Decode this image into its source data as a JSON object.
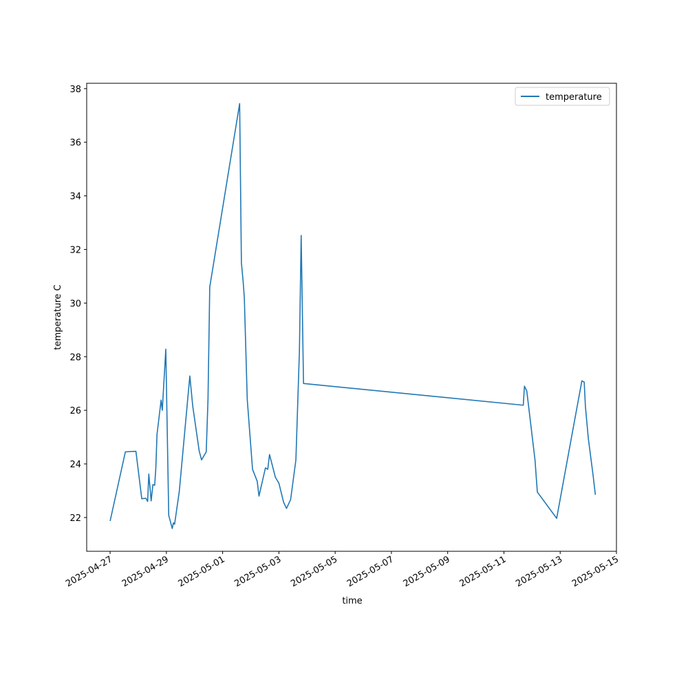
{
  "chart_data": {
    "type": "line",
    "xlabel": "time",
    "ylabel": "temperature C",
    "x": [
      "2025-04-27T00:00",
      "2025-04-27T13:00",
      "2025-04-27T22:00",
      "2025-04-28T03:00",
      "2025-04-28T06:30",
      "2025-04-28T08:00",
      "2025-04-28T09:00",
      "2025-04-28T11:00",
      "2025-04-28T12:30",
      "2025-04-28T14:00",
      "2025-04-28T15:00",
      "2025-04-28T16:00",
      "2025-04-28T19:30",
      "2025-04-28T20:30",
      "2025-04-28T23:30",
      "2025-04-29T02:00",
      "2025-04-29T05:00",
      "2025-04-29T06:00",
      "2025-04-29T07:00",
      "2025-04-29T11:00",
      "2025-04-29T20:00",
      "2025-04-29T22:30",
      "2025-04-30T04:00",
      "2025-04-30T06:00",
      "2025-04-30T10:00",
      "2025-04-30T11:30",
      "2025-04-30T13:00",
      "2025-05-01T14:30",
      "2025-05-01T16:00",
      "2025-05-01T17:30",
      "2025-05-01T18:30",
      "2025-05-01T21:00",
      "2025-05-02T01:30",
      "2025-05-02T05:30",
      "2025-05-02T07:00",
      "2025-05-02T12:30",
      "2025-05-02T14:30",
      "2025-05-02T16:00",
      "2025-05-02T21:00",
      "2025-05-03T00:00",
      "2025-05-03T04:00",
      "2025-05-03T06:30",
      "2025-05-03T10:00",
      "2025-05-03T14:30",
      "2025-05-03T17:30",
      "2025-05-03T19:00",
      "2025-05-03T21:00",
      "2025-05-11T16:30",
      "2025-05-11T17:30",
      "2025-05-11T19:30",
      "2025-05-12T02:30",
      "2025-05-12T04:30",
      "2025-05-12T21:00",
      "2025-05-13T08:00",
      "2025-05-13T18:30",
      "2025-05-13T20:30",
      "2025-05-13T21:30",
      "2025-05-14T00:00",
      "2025-05-14T04:00",
      "2025-05-14T06:00"
    ],
    "series": [
      {
        "name": "temperature",
        "color": "#1f77b4",
        "values": [
          21.87,
          24.45,
          24.47,
          22.7,
          22.72,
          22.6,
          23.62,
          22.62,
          23.23,
          23.2,
          23.85,
          25.1,
          26.38,
          26.0,
          28.28,
          22.08,
          21.59,
          21.8,
          21.75,
          22.97,
          27.28,
          26.15,
          24.48,
          24.15,
          24.45,
          26.4,
          30.6,
          37.44,
          31.5,
          30.8,
          30.2,
          26.4,
          23.8,
          23.35,
          22.8,
          23.85,
          23.8,
          24.35,
          23.5,
          23.28,
          22.57,
          22.34,
          22.67,
          24.15,
          28.2,
          32.52,
          27.0,
          26.19,
          26.9,
          26.72,
          24.15,
          22.95,
          21.97,
          24.6,
          27.1,
          27.05,
          26.15,
          24.95,
          23.6,
          22.85
        ]
      }
    ],
    "xlim": [
      "2025-04-26T04:00",
      "2025-05-15T00:00"
    ],
    "xticks": [
      "2025-04-27",
      "2025-04-29",
      "2025-05-01",
      "2025-05-03",
      "2025-05-05",
      "2025-05-07",
      "2025-05-09",
      "2025-05-11",
      "2025-05-13",
      "2025-05-15"
    ],
    "ylim": [
      20.74,
      38.2
    ],
    "yticks": [
      22,
      24,
      26,
      28,
      30,
      32,
      34,
      36,
      38
    ],
    "legend": "upper right"
  }
}
